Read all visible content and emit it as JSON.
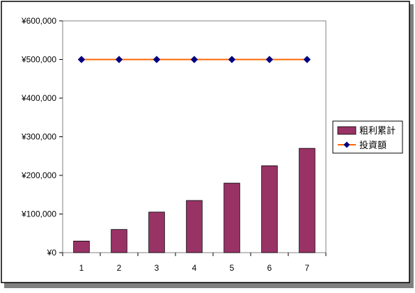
{
  "chart_data": {
    "type": "bar",
    "categories": [
      "1",
      "2",
      "3",
      "4",
      "5",
      "6",
      "7"
    ],
    "series": [
      {
        "name": "粗利累計",
        "kind": "bar",
        "color": "#993366",
        "values": [
          30000,
          60000,
          105000,
          135000,
          180000,
          225000,
          270000
        ]
      },
      {
        "name": "投資額",
        "kind": "line",
        "color": "#FF6600",
        "marker_color": "#000080",
        "marker": "diamond",
        "values": [
          500000,
          500000,
          500000,
          500000,
          500000,
          500000,
          500000
        ]
      }
    ],
    "title": "",
    "xlabel": "",
    "ylabel": "",
    "ylim": [
      0,
      600000
    ],
    "yticks": [
      0,
      100000,
      200000,
      300000,
      400000,
      500000,
      600000
    ],
    "ytick_labels": [
      "¥0",
      "¥100,000",
      "¥200,000",
      "¥300,000",
      "¥400,000",
      "¥500,000",
      "¥600,000"
    ],
    "grid": false,
    "legend": "right",
    "plot_background": "#ffffff",
    "border_color": "#000000"
  }
}
